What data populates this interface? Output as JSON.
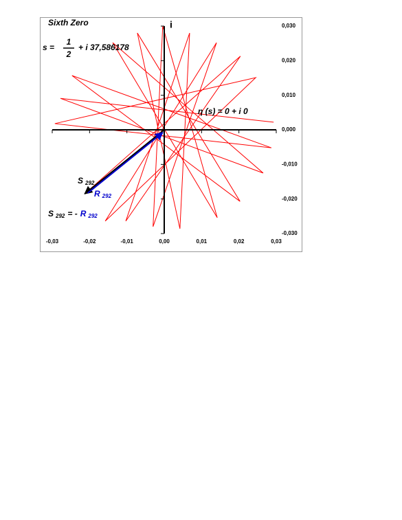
{
  "chart_data": {
    "type": "line",
    "title": "Sixth Zero",
    "formula": {
      "lhs": "s =",
      "numerator": "1",
      "denominator": "2",
      "rest": "+ i 37,586178"
    },
    "y_label": "i",
    "eta_label": "η (s) = 0 + i 0",
    "s_label": {
      "text": "S",
      "sub": "292"
    },
    "r_label": {
      "text": "R",
      "sub": "292"
    },
    "equation": {
      "lhs": "S",
      "lhs_sub": "292",
      "op": "= -",
      "rhs": "R",
      "rhs_sub": "292"
    },
    "xlim": [
      -0.03,
      0.03
    ],
    "ylim": [
      -0.03,
      0.03
    ],
    "xticks": [
      {
        "value": -0.03,
        "label": "-0,03"
      },
      {
        "value": -0.02,
        "label": "-0,02"
      },
      {
        "value": -0.01,
        "label": "-0,01"
      },
      {
        "value": 0,
        "label": "0,00"
      },
      {
        "value": 0.01,
        "label": "0,01"
      },
      {
        "value": 0.02,
        "label": "0,02"
      },
      {
        "value": 0.03,
        "label": "0,03"
      }
    ],
    "yticks": [
      {
        "value": 0.03,
        "label": "0,030"
      },
      {
        "value": 0.02,
        "label": "0,020"
      },
      {
        "value": 0.01,
        "label": "0,010"
      },
      {
        "value": 0,
        "label": "0,000"
      },
      {
        "value": -0.01,
        "label": "-0,010"
      },
      {
        "value": -0.02,
        "label": "-0,020"
      },
      {
        "value": -0.03,
        "label": "-0,030"
      }
    ],
    "series": [
      {
        "color": "#ff0000",
        "x": [
          0.0293,
          -0.0278,
          0.0265,
          -0.0138,
          0.0142,
          -0.0004,
          -0.003,
          0.014,
          -0.0158,
          0.0245,
          -0.0293,
          0.0287,
          -0.0247,
          0.0203,
          -0.0072,
          0.0042,
          0.0068,
          -0.0103,
          0.0204,
          -0.0213
        ],
        "y": [
          0.0022,
          0.0091,
          -0.0125,
          0.0252,
          -0.0254,
          0.03,
          -0.028,
          0.0252,
          -0.0264,
          0.0151,
          0.0018,
          -0.0052,
          0.0157,
          -0.0207,
          0.028,
          -0.0286,
          0.028,
          -0.0264,
          0.0213,
          -0.0185
        ]
      }
    ],
    "arrows": [
      {
        "from": [
          0,
          0
        ],
        "to": [
          -0.0213,
          -0.0185
        ],
        "color": "#000000"
      },
      {
        "from": [
          -0.0205,
          -0.0183
        ],
        "to": [
          -0.0004,
          -0.0008
        ],
        "color": "#0000cc"
      }
    ]
  }
}
